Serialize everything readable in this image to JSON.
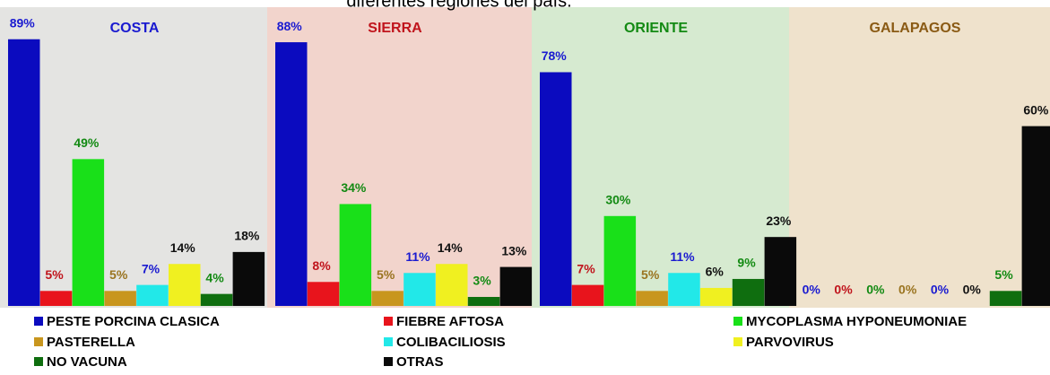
{
  "chart_data": {
    "type": "bar",
    "title": "diferentes regiones del país.",
    "categories": [
      "COSTA",
      "SIERRA",
      "ORIENTE",
      "GALAPAGOS"
    ],
    "category_colors": [
      "#1a1ad0",
      "#c0141c",
      "#138a13",
      "#8a5a14"
    ],
    "panel_colors": [
      "#e4e4e2",
      "#f2d4cc",
      "#d6ead0",
      "#efe2cc"
    ],
    "ylim": [
      0,
      100
    ],
    "series": [
      {
        "name": "PESTE PORCINA CLASICA",
        "color": "#0b0bbf",
        "label_color": "#1a1ad0",
        "values": [
          89,
          88,
          78,
          0
        ],
        "value_labels": [
          "89%",
          "88%",
          "78%",
          "0%"
        ]
      },
      {
        "name": "FIEBRE AFTOSA",
        "color": "#e8141c",
        "label_color": "#c0141c",
        "values": [
          5,
          8,
          7,
          0
        ],
        "value_labels": [
          "5%",
          "8%",
          "7%",
          "0%"
        ]
      },
      {
        "name": "MYCOPLASMA HYPONEUMONIAE",
        "color": "#19e019",
        "label_color": "#138a13",
        "values": [
          49,
          34,
          30,
          0
        ],
        "value_labels": [
          "49%",
          "34%",
          "30%",
          "0%"
        ]
      },
      {
        "name": "PASTERELLA",
        "color": "#c8961e",
        "label_color": "#9a7420",
        "values": [
          5,
          5,
          5,
          0
        ],
        "value_labels": [
          "5%",
          "5%",
          "5%",
          "0%"
        ]
      },
      {
        "name": "COLIBACILIOSIS",
        "color": "#22e8e8",
        "label_color": "#1a1ad0",
        "values": [
          7,
          11,
          11,
          0
        ],
        "value_labels": [
          "7%",
          "11%",
          "11%",
          "0%"
        ]
      },
      {
        "name": "PARVOVIRUS",
        "color": "#f0f020",
        "label_color": "#111111",
        "values": [
          14,
          14,
          6,
          0
        ],
        "value_labels": [
          "14%",
          "14%",
          "6%",
          "0%"
        ]
      },
      {
        "name": "NO VACUNA",
        "color": "#0f6e0f",
        "label_color": "#138a13",
        "values": [
          4,
          3,
          9,
          5
        ],
        "value_labels": [
          "4%",
          "3%",
          "9%",
          "5%"
        ]
      },
      {
        "name": "OTRAS",
        "color": "#0a0a0a",
        "label_color": "#111111",
        "values": [
          18,
          13,
          23,
          60
        ],
        "value_labels": [
          "18%",
          "13%",
          "23%",
          "60%"
        ]
      }
    ]
  }
}
